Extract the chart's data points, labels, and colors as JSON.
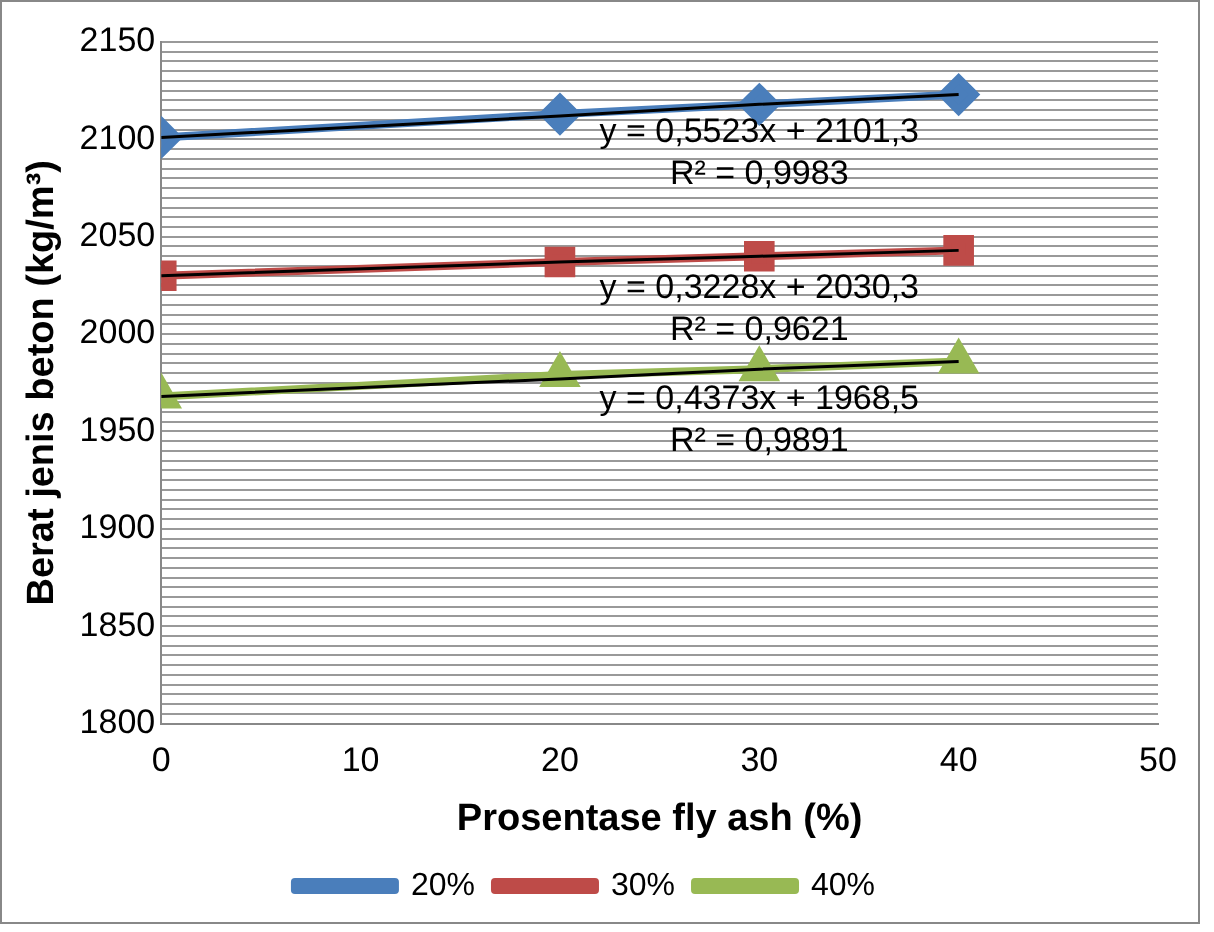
{
  "chart_data": {
    "type": "line",
    "xlabel": "Prosentase fly ash (%)",
    "ylabel": "Berat jenis beton (kg/m³)",
    "x": [
      0,
      20,
      30,
      40
    ],
    "xlim": [
      0,
      50
    ],
    "xticks": [
      0,
      10,
      20,
      30,
      40,
      50
    ],
    "ylim": [
      1800,
      2150
    ],
    "yticks": [
      1800,
      {
        "value": 1805,
        "label": null
      },
      {
        "value": 1810,
        "label": null
      },
      {
        "value": 1815,
        "label": null
      },
      {
        "value": 1820,
        "label": null
      },
      {
        "value": 1825,
        "label": null
      },
      {
        "value": 1830,
        "label": null
      },
      {
        "value": 1835,
        "label": null
      },
      {
        "value": 1840,
        "label": null
      },
      {
        "value": 1845,
        "label": null
      },
      1850,
      {
        "value": 1855,
        "label": null
      },
      {
        "value": 1860,
        "label": null
      },
      {
        "value": 1865,
        "label": null
      },
      {
        "value": 1870,
        "label": null
      },
      {
        "value": 1875,
        "label": null
      },
      {
        "value": 1880,
        "label": null
      },
      {
        "value": 1885,
        "label": null
      },
      {
        "value": 1890,
        "label": null
      },
      {
        "value": 1895,
        "label": null
      },
      1900,
      {
        "value": 1905,
        "label": null
      },
      {
        "value": 1910,
        "label": null
      },
      {
        "value": 1915,
        "label": null
      },
      {
        "value": 1920,
        "label": null
      },
      {
        "value": 1925,
        "label": null
      },
      {
        "value": 1930,
        "label": null
      },
      {
        "value": 1935,
        "label": null
      },
      {
        "value": 1940,
        "label": null
      },
      {
        "value": 1945,
        "label": null
      },
      1950,
      {
        "value": 1955,
        "label": null
      },
      {
        "value": 1960,
        "label": null
      },
      {
        "value": 1965,
        "label": null
      },
      {
        "value": 1970,
        "label": null
      },
      {
        "value": 1975,
        "label": null
      },
      {
        "value": 1980,
        "label": null
      },
      {
        "value": 1985,
        "label": null
      },
      {
        "value": 1990,
        "label": null
      },
      {
        "value": 1995,
        "label": null
      },
      2000,
      {
        "value": 2005,
        "label": null
      },
      {
        "value": 2010,
        "label": null
      },
      {
        "value": 2015,
        "label": null
      },
      {
        "value": 2020,
        "label": null
      },
      {
        "value": 2025,
        "label": null
      },
      {
        "value": 2030,
        "label": null
      },
      {
        "value": 2035,
        "label": null
      },
      {
        "value": 2040,
        "label": null
      },
      {
        "value": 2045,
        "label": null
      },
      2050,
      {
        "value": 2055,
        "label": null
      },
      {
        "value": 2060,
        "label": null
      },
      {
        "value": 2065,
        "label": null
      },
      {
        "value": 2070,
        "label": null
      },
      {
        "value": 2075,
        "label": null
      },
      {
        "value": 2080,
        "label": null
      },
      {
        "value": 2085,
        "label": null
      },
      {
        "value": 2090,
        "label": null
      },
      {
        "value": 2095,
        "label": null
      },
      2100,
      {
        "value": 2105,
        "label": null
      },
      {
        "value": 2110,
        "label": null
      },
      {
        "value": 2115,
        "label": null
      },
      {
        "value": 2120,
        "label": null
      },
      {
        "value": 2125,
        "label": null
      },
      {
        "value": 2130,
        "label": null
      },
      {
        "value": 2135,
        "label": null
      },
      {
        "value": 2140,
        "label": null
      },
      {
        "value": 2145,
        "label": null
      },
      2150
    ],
    "grid": "y",
    "legend": "bottom",
    "series": [
      {
        "name": "20%",
        "color": "#4a7ebb",
        "marker": "diamond",
        "values": [
          2101,
          2113,
          2118,
          2123
        ]
      },
      {
        "name": "30%",
        "color": "#be4b48",
        "marker": "square",
        "values": [
          2030,
          2037,
          2040,
          2043
        ]
      },
      {
        "name": "40%",
        "color": "#98b954",
        "marker": "triangle",
        "values": [
          1968,
          1979,
          1982,
          1986
        ]
      },
      {
        "type": "line",
        "color": "#000000",
        "marker": "none",
        "values": [
          2101,
          2112,
          2118,
          2123
        ]
      },
      {
        "type": "line",
        "color": "#000000",
        "marker": "none",
        "values": [
          2030,
          2037,
          2040,
          2043
        ]
      },
      {
        "type": "line",
        "color": "#000000",
        "marker": "none",
        "values": [
          1968,
          1977,
          1982,
          1986
        ]
      }
    ],
    "annotations": [
      "y = 0,5523x + 2101,3",
      "R² = 0,9983",
      "y = 0,3228x + 2030,3",
      "R² = 0,9621",
      "y = 0,4373x + 1968,5",
      "R² = 0,9891"
    ]
  }
}
